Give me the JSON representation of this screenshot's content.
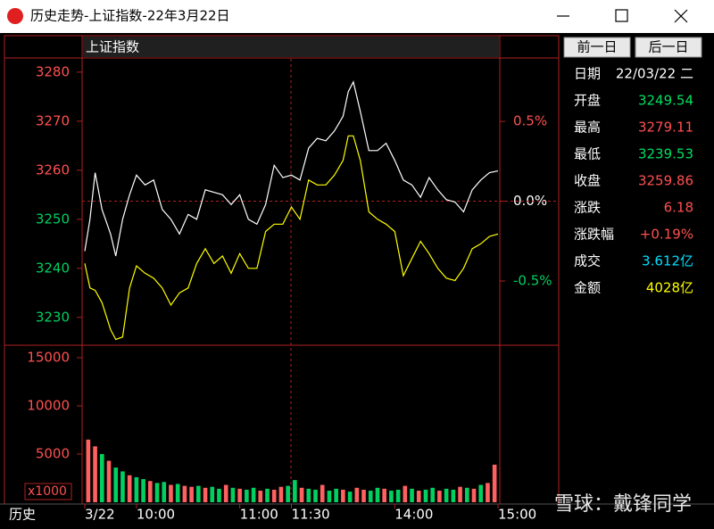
{
  "window": {
    "title": "历史走势-上证指数-22年3月22日"
  },
  "buttons": [
    "前一日",
    "后一日"
  ],
  "info": [
    {
      "label": "日期",
      "value": "22/03/22 二",
      "color": "#ffffff"
    },
    {
      "label": "开盘",
      "value": "3249.54",
      "color": "#00e060"
    },
    {
      "label": "最高",
      "value": "3279.11",
      "color": "#ff5050"
    },
    {
      "label": "最低",
      "value": "3239.53",
      "color": "#00e060"
    },
    {
      "label": "收盘",
      "value": "3259.86",
      "color": "#ff5050"
    },
    {
      "label": "涨跌",
      "value": "6.18",
      "color": "#ff5050"
    },
    {
      "label": "涨跌幅",
      "value": "+0.19%",
      "color": "#ff5050"
    },
    {
      "label": "成交",
      "value": "3.612亿",
      "color": "#00e0ff"
    },
    {
      "label": "金额",
      "value": "4028亿",
      "color": "#ffff00"
    }
  ],
  "footer_label": "历史",
  "watermark": "雪球：戴锋同学",
  "chart_data": [
    {
      "type": "line",
      "title": "上证指数",
      "x": [
        0,
        3,
        6,
        10,
        15,
        18,
        22,
        26,
        30,
        35,
        40,
        45,
        50,
        55,
        60,
        65,
        70,
        75,
        80,
        85,
        90,
        95,
        100,
        105,
        110,
        115,
        120,
        125,
        130,
        135,
        140,
        145,
        150,
        153,
        156,
        160,
        165,
        170,
        175,
        180,
        185,
        190,
        195,
        200,
        205,
        210,
        215,
        220,
        225,
        230,
        235,
        240
      ],
      "series": [
        {
          "color": "#ffffff",
          "values": [
            3243.5,
            3250,
            3259.5,
            3252,
            3247,
            3242.5,
            3250,
            3255,
            3259,
            3257,
            3258,
            3252,
            3250,
            3247,
            3251,
            3250,
            3256,
            3255.5,
            3255,
            3253,
            3255,
            3250,
            3249,
            3253,
            3261,
            3258.5,
            3259,
            3258,
            3264.5,
            3266.5,
            3266,
            3268,
            3271,
            3276,
            3278,
            3272,
            3264,
            3264,
            3265.5,
            3262,
            3258,
            3257,
            3254.5,
            3258.5,
            3256,
            3254,
            3253.5,
            3251.5,
            3256,
            3258,
            3259.5,
            3259.86
          ]
        },
        {
          "color": "#ffff00",
          "values": [
            3241,
            3236,
            3235.5,
            3233,
            3227.5,
            3225.5,
            3226,
            3236,
            3240.5,
            3239,
            3238,
            3236,
            3232.5,
            3235,
            3236,
            3241,
            3244,
            3241,
            3242.5,
            3239,
            3243,
            3240,
            3240,
            3247.5,
            3249,
            3249,
            3252.5,
            3250,
            3258,
            3257,
            3257,
            3259,
            3262,
            3267,
            3267,
            3262,
            3251.5,
            3250,
            3249,
            3247.5,
            3238.5,
            3242,
            3245.5,
            3243,
            3240,
            3238,
            3237.5,
            3240,
            3244,
            3245,
            3246.5,
            3247
          ]
        }
      ],
      "xlim": [
        0,
        240
      ],
      "ylim": [
        3224.5,
        3282.7
      ],
      "yticks": [
        3230,
        3240,
        3250,
        3260,
        3270,
        3280
      ],
      "y2lim": [
        -0.897,
        0.892
      ],
      "y2ticks": [
        {
          "value": 0.5,
          "label": "0.5%"
        },
        {
          "value": 0,
          "label": "0.0%"
        },
        {
          "value": -0.5,
          "label": "-0.5%"
        }
      ]
    },
    {
      "type": "bar",
      "unit_label": "x1000",
      "x": [
        2,
        6,
        10,
        14,
        18,
        22,
        26,
        30,
        34,
        38,
        42,
        46,
        50,
        54,
        58,
        62,
        66,
        70,
        74,
        78,
        82,
        86,
        90,
        94,
        98,
        102,
        106,
        110,
        114,
        118,
        122,
        126,
        130,
        134,
        138,
        142,
        146,
        150,
        154,
        158,
        162,
        166,
        170,
        174,
        178,
        182,
        186,
        190,
        194,
        198,
        202,
        206,
        210,
        214,
        218,
        222,
        226,
        230,
        234,
        238
      ],
      "values": [
        6500,
        5800,
        5000,
        4300,
        3600,
        3200,
        2800,
        2600,
        2400,
        2200,
        2000,
        2100,
        1800,
        1900,
        1700,
        1600,
        1700,
        1500,
        1600,
        1400,
        1800,
        1500,
        1400,
        1300,
        1500,
        1200,
        1400,
        1300,
        1600,
        1700,
        2300,
        1500,
        1400,
        1300,
        1800,
        1200,
        1400,
        1300,
        1100,
        1500,
        1300,
        1200,
        1500,
        1400,
        1200,
        1300,
        1700,
        1400,
        1200,
        1300,
        1500,
        1200,
        1400,
        1300,
        1600,
        1500,
        1400,
        1800,
        2000,
        3900
      ],
      "colors": [
        "#ff6060",
        "#ff6060",
        "#00d060",
        "#ff6060",
        "#00d060",
        "#00d060",
        "#ff6060",
        "#00d060",
        "#00d060",
        "#ff6060",
        "#00d060",
        "#00d060",
        "#ff6060",
        "#00d060",
        "#ff6060",
        "#ff6060",
        "#00d060",
        "#ff6060",
        "#00d060",
        "#00d060",
        "#ff6060",
        "#00d060",
        "#ff6060",
        "#00d060",
        "#00d060",
        "#ff6060",
        "#00d060",
        "#ff6060",
        "#ff6060",
        "#00d060",
        "#00d060",
        "#ff6060",
        "#00d060",
        "#00d060",
        "#ff6060",
        "#00d060",
        "#00d060",
        "#ff6060",
        "#00d060",
        "#ff6060",
        "#ff6060",
        "#00d060",
        "#00d060",
        "#ff6060",
        "#00d060",
        "#00d060",
        "#ff6060",
        "#00d060",
        "#ff6060",
        "#00d060",
        "#00d060",
        "#ff6060",
        "#00d060",
        "#00d060",
        "#ff6060",
        "#00d060",
        "#ff6060",
        "#00d060",
        "#ff6060",
        "#ff6060"
      ],
      "xlim": [
        0,
        240
      ],
      "ylim": [
        0,
        16200
      ],
      "yticks": [
        5000,
        10000,
        15000
      ],
      "tick_color": "#ff5050",
      "xticks": [
        {
          "value": 0,
          "label": "3/22"
        },
        {
          "value": 30,
          "label": "10:00"
        },
        {
          "value": 90,
          "label": "11:00"
        },
        {
          "value": 120,
          "label": "11:30"
        },
        {
          "value": 180,
          "label": "14:00"
        },
        {
          "value": 240,
          "label": "15:00"
        }
      ]
    }
  ]
}
